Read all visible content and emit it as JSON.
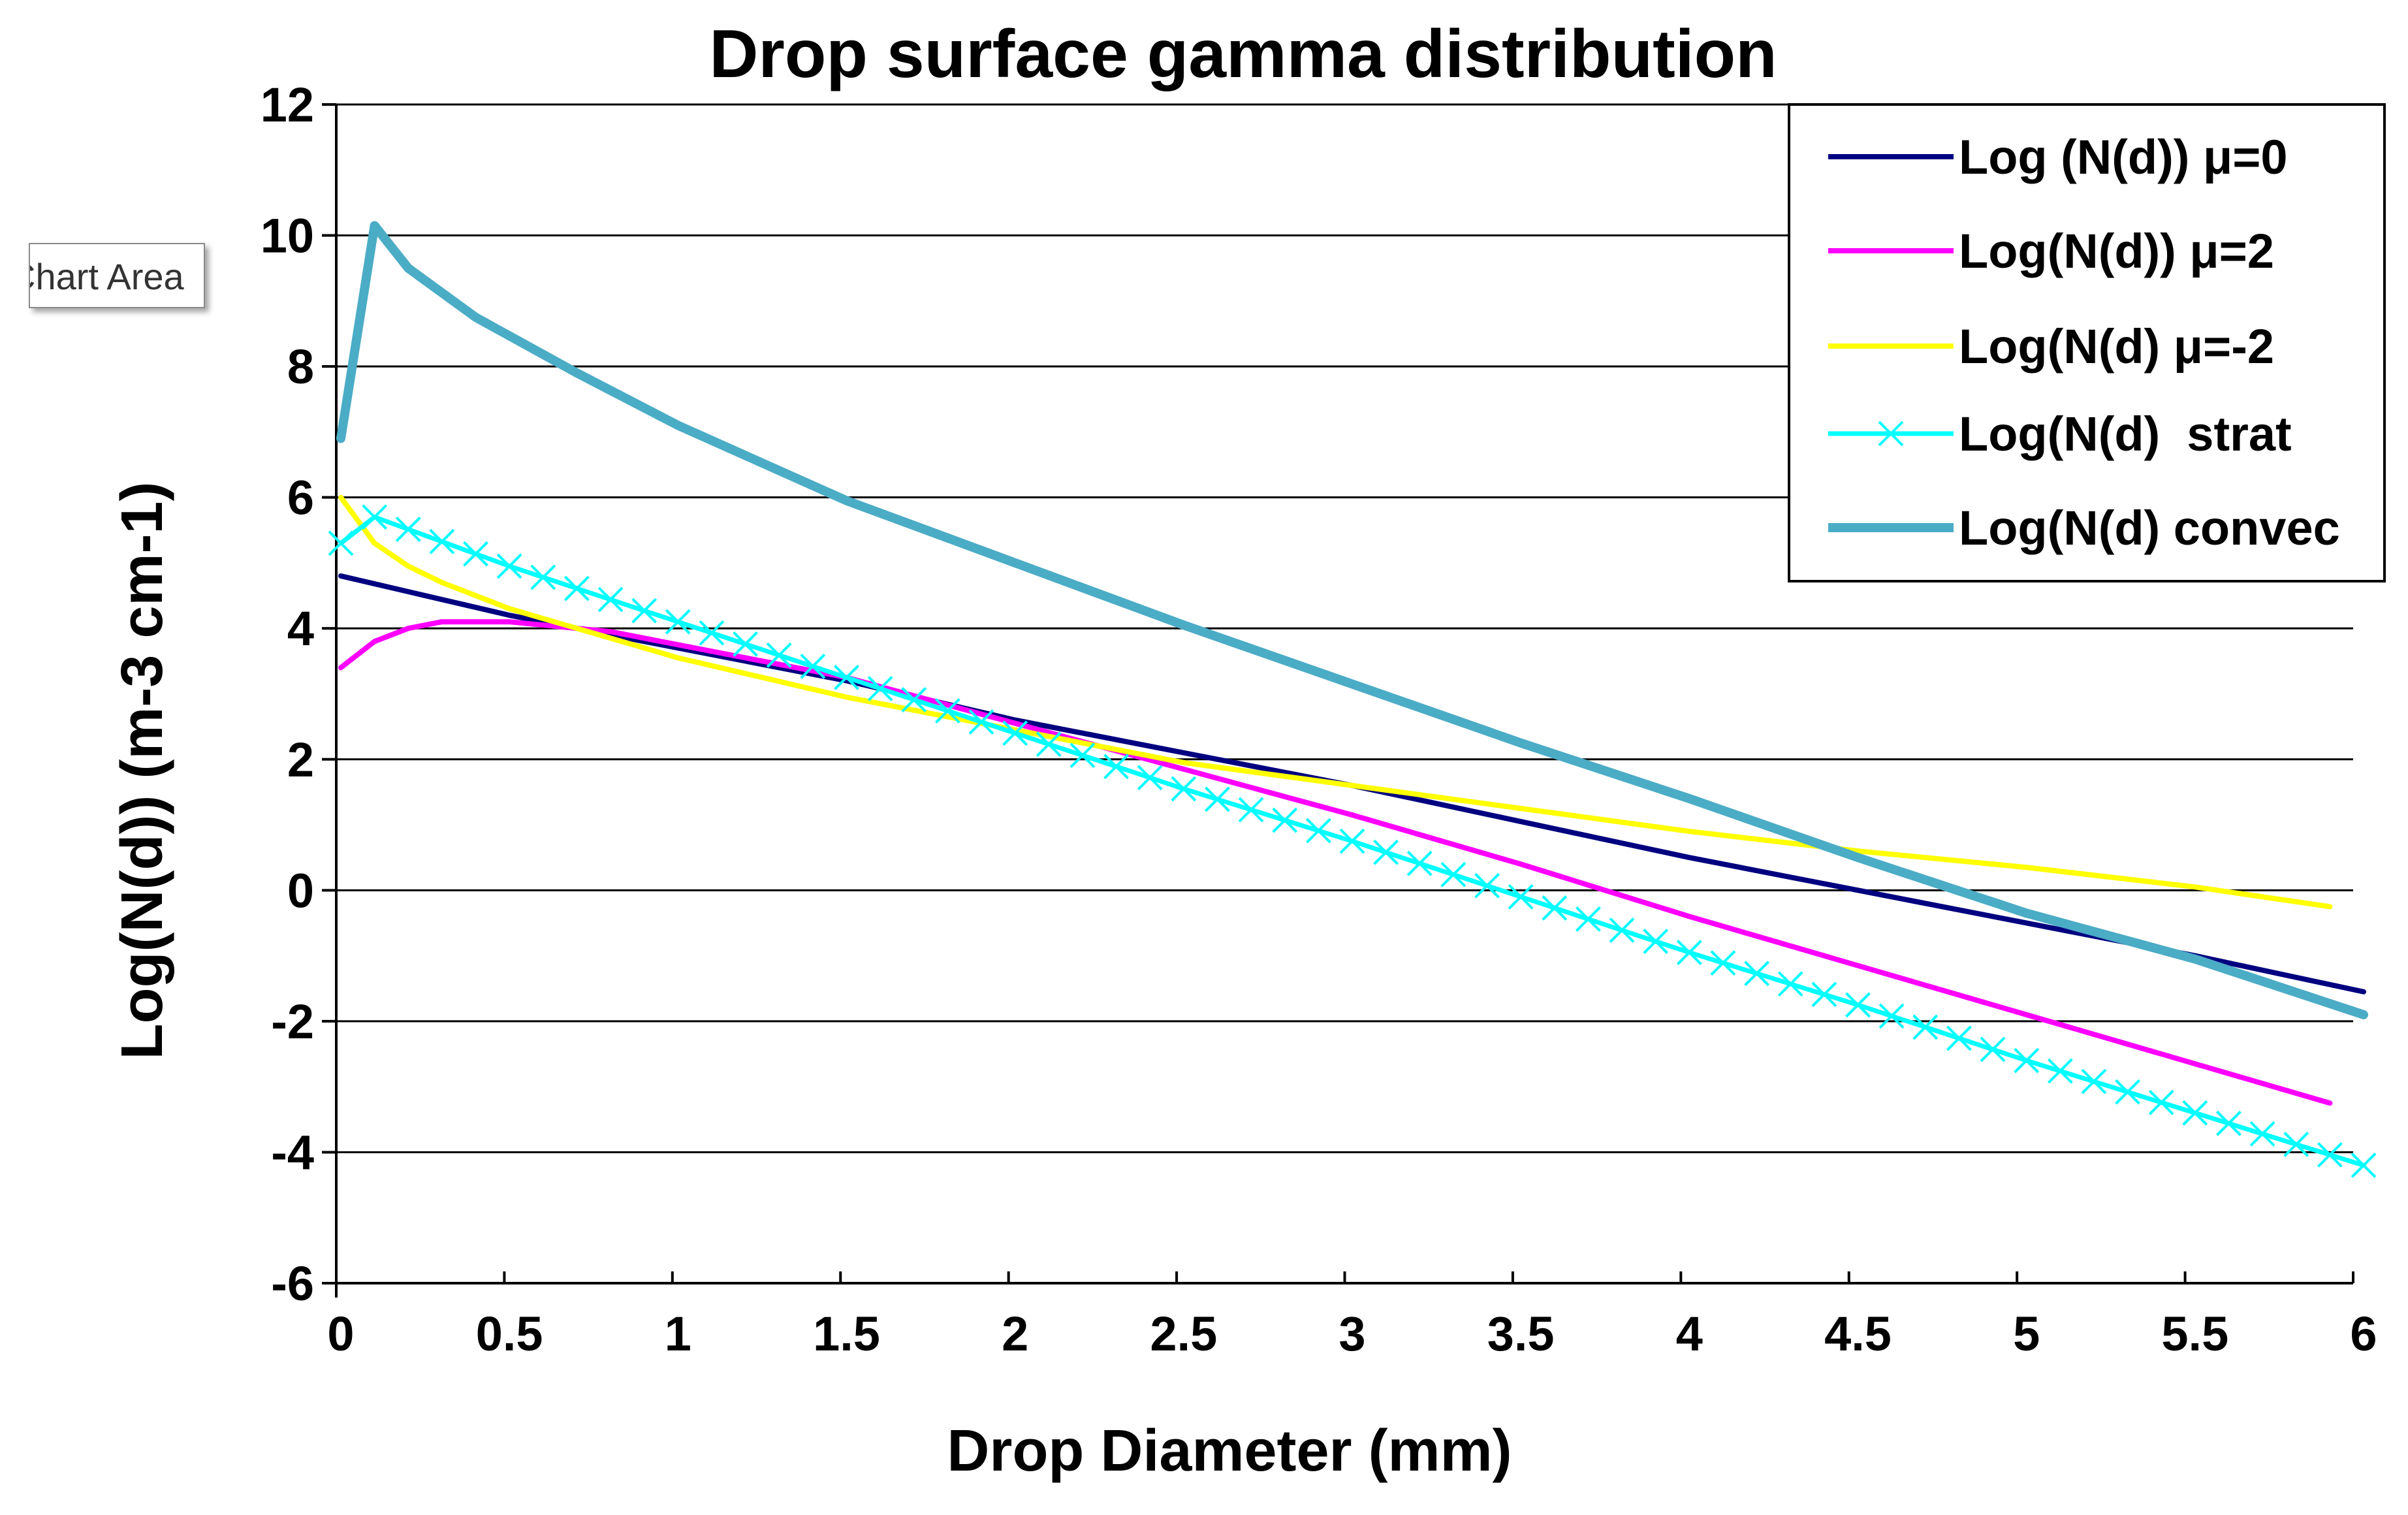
{
  "tooltip": {
    "text": "Chart Area"
  },
  "chart_data": {
    "type": "line",
    "title": "Drop surface gamma distribution",
    "xlabel": "Drop Diameter (mm)",
    "ylabel": "Log(N(d)) (m-3 cm-1)",
    "xlim": [
      0,
      6
    ],
    "ylim": [
      -6,
      12
    ],
    "x_ticks": [
      "0",
      "0.5",
      "1",
      "1.5",
      "2",
      "2.5",
      "3",
      "3.5",
      "4",
      "4.5",
      "5",
      "5.5",
      "6"
    ],
    "y_ticks": [
      "12",
      "10",
      "8",
      "6",
      "4",
      "2",
      "0",
      "-2",
      "-4",
      "-6"
    ],
    "grid": "horizontal",
    "legend_position": "top-right",
    "series": [
      {
        "name": "Log (N(d)) μ=0",
        "color": "#000080",
        "marker": "none",
        "x": [
          0,
          0.5,
          1,
          1.5,
          2,
          2.5,
          3,
          3.5,
          4,
          4.5,
          5,
          5.5,
          6
        ],
        "y": [
          4.8,
          4.2,
          3.7,
          3.2,
          2.6,
          2.1,
          1.6,
          1.05,
          0.5,
          0.0,
          -0.5,
          -1.0,
          -1.55
        ]
      },
      {
        "name": "Log(N(d)) μ=2",
        "color": "#ff00ff",
        "marker": "none",
        "x": [
          0,
          0.1,
          0.2,
          0.3,
          0.5,
          0.8,
          1,
          1.5,
          2,
          2.5,
          3,
          3.5,
          4,
          4.5,
          5,
          5.5,
          5.9
        ],
        "y": [
          3.4,
          3.8,
          4.0,
          4.1,
          4.1,
          3.95,
          3.75,
          3.25,
          2.55,
          1.85,
          1.15,
          0.4,
          -0.4,
          -1.15,
          -1.9,
          -2.65,
          -3.25
        ]
      },
      {
        "name": "Log(N(d) μ=-2",
        "color": "#ffff00",
        "marker": "none",
        "x": [
          0,
          0.1,
          0.2,
          0.3,
          0.5,
          0.8,
          1,
          1.5,
          2,
          2.5,
          3,
          3.5,
          4,
          4.5,
          5,
          5.5,
          5.9
        ],
        "y": [
          6.0,
          5.3,
          4.95,
          4.7,
          4.3,
          3.85,
          3.55,
          2.95,
          2.45,
          1.95,
          1.6,
          1.25,
          0.9,
          0.6,
          0.35,
          0.05,
          -0.25
        ]
      },
      {
        "name": "Log(N(d)  strat",
        "color": "#00ffff",
        "marker": "x",
        "x": [
          0,
          0.1,
          0.5,
          1,
          1.5,
          2,
          2.5,
          3,
          3.5,
          4,
          4.5,
          5,
          5.5,
          6
        ],
        "y": [
          5.3,
          5.7,
          4.95,
          4.1,
          3.25,
          2.4,
          1.55,
          0.75,
          -0.1,
          -0.95,
          -1.75,
          -2.6,
          -3.4,
          -4.2
        ]
      },
      {
        "name": "Log(N(d) convec",
        "color": "#4bacc6",
        "marker": "none",
        "x": [
          0,
          0.1,
          0.2,
          0.4,
          0.7,
          1,
          1.5,
          2,
          2.5,
          3,
          3.5,
          4,
          4.5,
          5,
          5.5,
          6
        ],
        "y": [
          6.9,
          10.15,
          9.5,
          8.75,
          7.9,
          7.1,
          5.95,
          5.0,
          4.05,
          3.15,
          2.25,
          1.4,
          0.5,
          -0.35,
          -1.05,
          -1.9
        ]
      }
    ]
  }
}
